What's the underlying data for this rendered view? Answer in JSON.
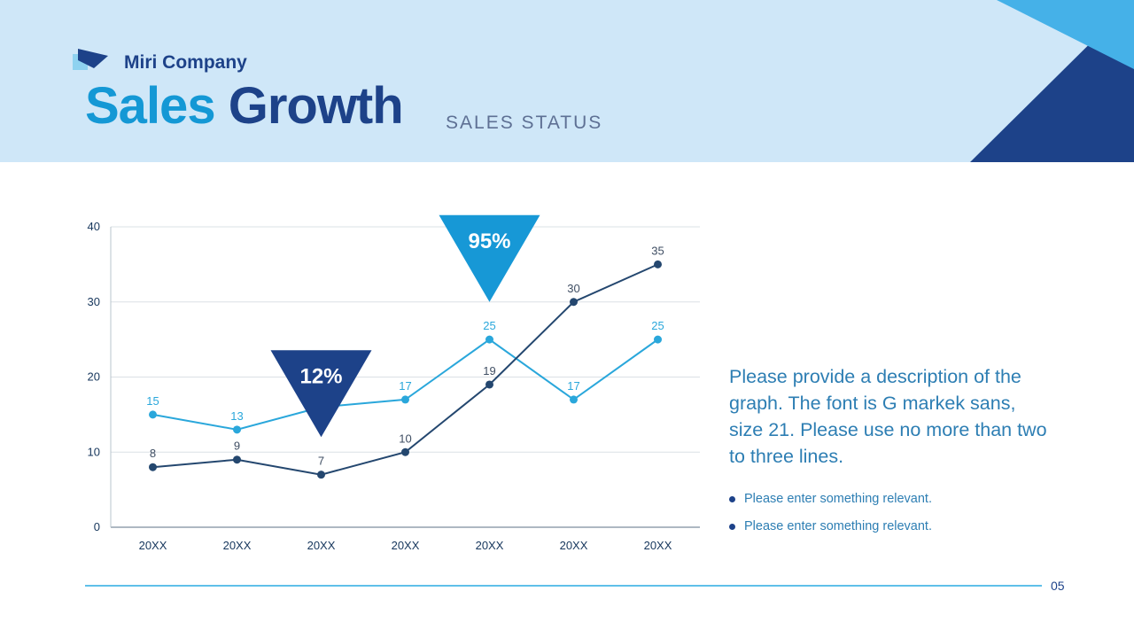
{
  "header": {
    "company": "Miri Company",
    "title_primary": "Sales",
    "title_secondary": "Growth",
    "subtitle": "SALES STATUS"
  },
  "colors": {
    "header_bg": "#cfe7f8",
    "navy": "#1d4289",
    "light_blue": "#1498d5",
    "paragraph_blue": "#2d7eb3"
  },
  "chart_data": {
    "type": "line",
    "title": "",
    "xlabel": "",
    "ylabel": "",
    "categories": [
      "20XX",
      "20XX",
      "20XX",
      "20XX",
      "20XX",
      "20XX",
      "20XX"
    ],
    "series": [
      {
        "name": "series-light-blue",
        "color": "#2aa7db",
        "label_color": "#2aa7db",
        "values": [
          15,
          13,
          16,
          17,
          25,
          17,
          25
        ],
        "labels": [
          "15",
          "13",
          "",
          "17",
          "25",
          "17",
          "25"
        ]
      },
      {
        "name": "series-dark-navy",
        "color": "#24476f",
        "label_color": "#3f4e63",
        "values": [
          8,
          9,
          7,
          10,
          19,
          30,
          35
        ],
        "labels": [
          "8",
          "9",
          "7",
          "10",
          "19",
          "30",
          "35"
        ]
      }
    ],
    "ylim": [
      0,
      40
    ],
    "yticks": [
      0,
      10,
      20,
      30,
      40
    ],
    "grid": true,
    "legend": "none",
    "callouts": [
      {
        "text": "12%",
        "color": "#1d4289",
        "x_index": 2,
        "apex_value": 12
      },
      {
        "text": "95%",
        "color": "#1798d6",
        "x_index": 4,
        "apex_value": 30
      }
    ]
  },
  "description": "Please provide a description of the graph. The font is G markek sans, size 21. Please use no more than two to three lines.",
  "bullets": [
    "Please enter something relevant.",
    "Please enter something relevant."
  ],
  "page_number": "05"
}
